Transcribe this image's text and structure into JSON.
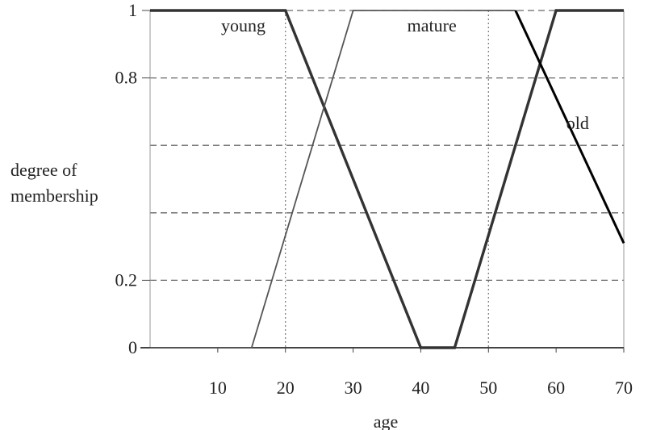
{
  "chart_data": {
    "type": "line",
    "xlabel": "age",
    "ylabel": [
      "degree of",
      "membership"
    ],
    "xlim": [
      0,
      70
    ],
    "ylim": [
      0,
      1
    ],
    "x_ticks": [
      10,
      20,
      30,
      40,
      50,
      60,
      70
    ],
    "y_ticks": [
      {
        "value": 0,
        "label": "0"
      },
      {
        "value": 0.2,
        "label": "0.2"
      },
      {
        "value": 0.8,
        "label": "0.8"
      },
      {
        "value": 1,
        "label": "1"
      }
    ],
    "y_gridlines": [
      0.2,
      0.4,
      0.6,
      0.8,
      1
    ],
    "x_gridlines": [
      20,
      50
    ],
    "series": [
      {
        "name": "young",
        "x": [
          0,
          20,
          40,
          45,
          60,
          70
        ],
        "y": [
          1,
          1,
          0,
          0,
          1,
          1
        ],
        "color": "#333333"
      },
      {
        "name": "mature",
        "x": [
          0,
          15,
          30,
          54
        ],
        "y": [
          0,
          0,
          1,
          1
        ],
        "color": "#555555"
      },
      {
        "name": "old",
        "x": [
          54,
          70
        ],
        "y": [
          1,
          0.31
        ],
        "color": "#000000"
      }
    ],
    "annotations": [
      {
        "text": "young",
        "x": 10.5,
        "y": 0.955
      },
      {
        "text": "mature",
        "x": 38,
        "y": 0.955
      },
      {
        "text": "old",
        "x": 61.5,
        "y": 0.665
      }
    ]
  }
}
